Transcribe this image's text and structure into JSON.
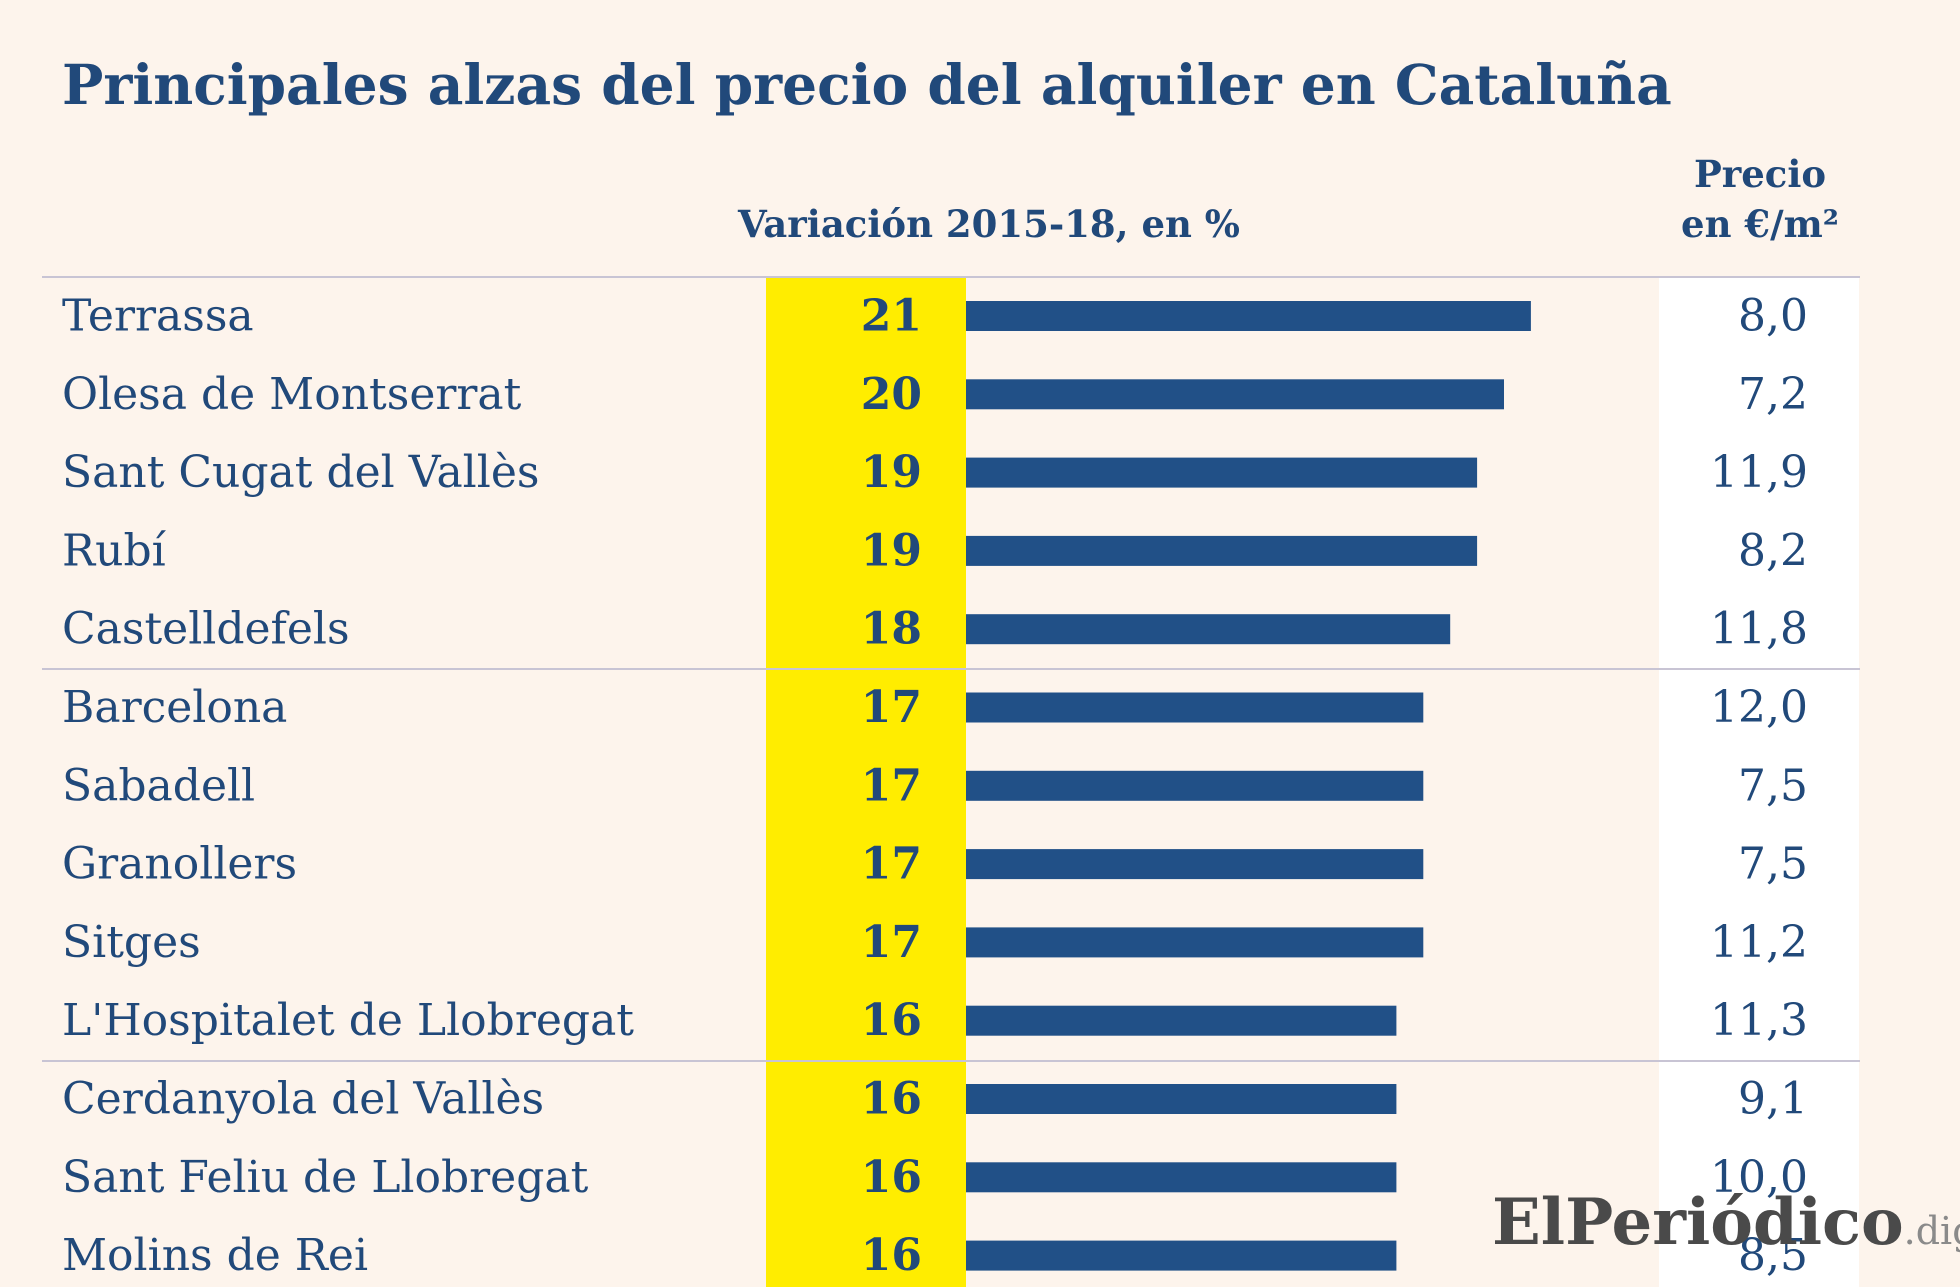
{
  "chart_data": {
    "type": "bar",
    "orientation": "horizontal",
    "title": "Principales alzas del precio del alquiler en Cataluña",
    "value_header": "Variación 2015-18, en %",
    "price_header_line1": "Precio",
    "price_header_line2": "en €/m²",
    "categories": [
      "Terrassa",
      "Olesa de Montserrat",
      "Sant Cugat del Vallès",
      "Rubí",
      "Castelldefels",
      "Barcelona",
      "Sabadell",
      "Granollers",
      "Sitges",
      "L'Hospitalet de Llobregat",
      "Cerdanyola del Vallès",
      "Sant Feliu de Llobregat",
      "Molins de Rei"
    ],
    "series": [
      {
        "values": [
          21,
          20,
          19,
          19,
          18,
          17,
          17,
          17,
          17,
          16,
          16,
          16,
          16
        ]
      }
    ],
    "prices": [
      "8,0",
      "7,2",
      "11,9",
      "8,2",
      "11,8",
      "12,0",
      "7,5",
      "7,5",
      "11,2",
      "11,3",
      "9,1",
      "10,0",
      "8,5"
    ],
    "colors": {
      "bar": "#215087",
      "text": "#21497a",
      "highlight": "#ffed00",
      "background": "#fdf4ec"
    }
  },
  "watermark": {
    "main": "ElPeriódico",
    "sub": ".digital"
  }
}
